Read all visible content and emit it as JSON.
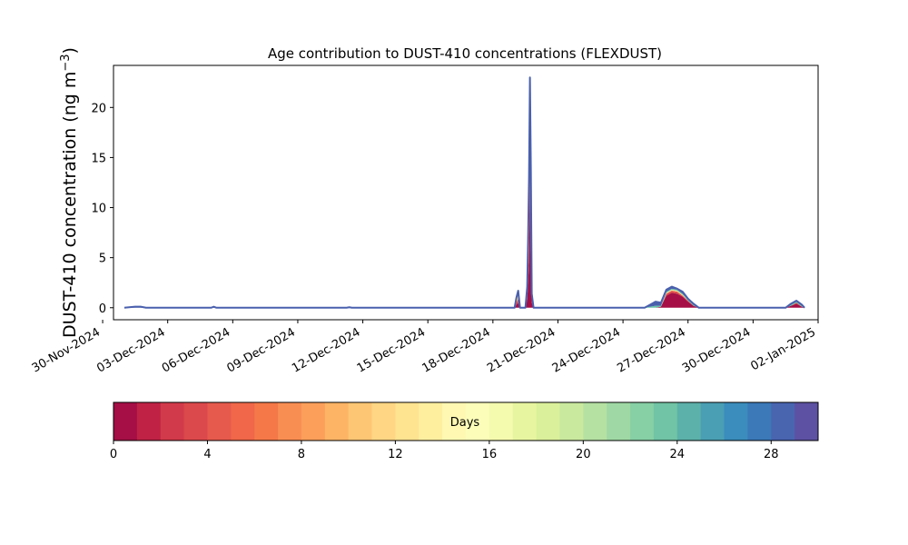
{
  "chart_data": {
    "type": "area",
    "stacked": true,
    "title": "Age contribution to DUST-410 concentrations (FLEXDUST)",
    "xlabel": "",
    "ylabel": "DUST-410 concentration (ng m⁻³)",
    "xlim": [
      "2024-11-30T12:00",
      "2025-01-02T00:00"
    ],
    "ylim": [
      -1.2,
      24.2
    ],
    "grid": false,
    "x_ticks": [
      "2024-11-30",
      "2024-12-03",
      "2024-12-06",
      "2024-12-09",
      "2024-12-12",
      "2024-12-15",
      "2024-12-18",
      "2024-12-21",
      "2024-12-24",
      "2024-12-27",
      "2024-12-30",
      "2025-01-02"
    ],
    "x_tick_labels": [
      "30-Nov-2024",
      "03-Dec-2024",
      "06-Dec-2024",
      "09-Dec-2024",
      "12-Dec-2024",
      "15-Dec-2024",
      "18-Dec-2024",
      "21-Dec-2024",
      "24-Dec-2024",
      "27-Dec-2024",
      "30-Dec-2024",
      "02-Jan-2025"
    ],
    "y_ticks": [
      0,
      5,
      10,
      15,
      20
    ],
    "y_tick_labels": [
      "0",
      "5",
      "10",
      "15",
      "20"
    ],
    "x": [
      "2024-12-01T00:00",
      "2024-12-01T12:00",
      "2024-12-01T18:00",
      "2024-12-02T00:00",
      "2024-12-05T00:00",
      "2024-12-05T03:00",
      "2024-12-05T06:00",
      "2024-12-11T06:00",
      "2024-12-11T09:00",
      "2024-12-11T12:00",
      "2024-12-19T00:00",
      "2024-12-19T02:00",
      "2024-12-19T04:00",
      "2024-12-19T06:00",
      "2024-12-19T09:00",
      "2024-12-19T12:00",
      "2024-12-19T14:00",
      "2024-12-19T15:00",
      "2024-12-19T16:00",
      "2024-12-19T17:00",
      "2024-12-19T18:00",
      "2024-12-19T19:00",
      "2024-12-19T21:00",
      "2024-12-20T00:00",
      "2024-12-25T00:00",
      "2024-12-25T06:00",
      "2024-12-25T12:00",
      "2024-12-25T18:00",
      "2024-12-26T00:00",
      "2024-12-26T06:00",
      "2024-12-26T12:00",
      "2024-12-26T18:00",
      "2024-12-27T00:00",
      "2024-12-27T06:00",
      "2024-12-27T12:00",
      "2024-12-31T00:00",
      "2024-12-31T12:00",
      "2024-12-31T18:00",
      "2025-01-01T00:00",
      "2025-01-01T06:00",
      "2025-01-01T09:00"
    ],
    "series": [
      {
        "values": [
          0,
          0,
          0,
          0,
          0,
          0,
          0,
          0,
          0,
          0,
          0,
          0.3,
          0.5,
          0,
          0,
          0,
          0.8,
          2.5,
          4.5,
          12.5,
          4,
          0.5,
          0,
          0,
          0,
          0,
          0,
          0.1,
          1.2,
          1.5,
          1.4,
          1.1,
          0.6,
          0.2,
          0,
          0,
          0,
          0.2,
          0.4,
          0.1,
          0
        ]
      },
      {
        "values": [
          0,
          0,
          0,
          0,
          0,
          0,
          0,
          0,
          0,
          0,
          0,
          0.2,
          0.4,
          0,
          0,
          0,
          0.5,
          1.5,
          3,
          5,
          3,
          0.4,
          0,
          0,
          0,
          0,
          0,
          0,
          0.2,
          0.2,
          0.2,
          0.1,
          0.1,
          0,
          0,
          0,
          0,
          0,
          0.1,
          0,
          0
        ]
      },
      {
        "values": [
          0,
          0,
          0,
          0,
          0,
          0,
          0,
          0,
          0,
          0,
          0,
          0.3,
          0.5,
          0,
          0,
          0,
          0.5,
          2,
          4,
          3.5,
          4,
          0.3,
          0,
          0,
          0,
          0,
          0,
          0,
          0.1,
          0.1,
          0.1,
          0.1,
          0,
          0,
          0,
          0,
          0,
          0,
          0,
          0,
          0
        ]
      },
      {
        "values": [
          0,
          0,
          0,
          0,
          0,
          0,
          0,
          0,
          0,
          0,
          0,
          0.1,
          0.2,
          0,
          0,
          0,
          0.2,
          0.5,
          1,
          1,
          1.5,
          0.1,
          0,
          0,
          0,
          0.1,
          0.2,
          0.1,
          0.1,
          0.1,
          0.1,
          0.1,
          0.1,
          0.1,
          0,
          0,
          0,
          0.1,
          0.1,
          0.1,
          0
        ]
      },
      {
        "values": [
          0,
          0.1,
          0.1,
          0,
          0,
          0.1,
          0,
          0,
          0.05,
          0,
          0,
          0.1,
          0.1,
          0,
          0,
          0,
          0.1,
          0.5,
          0.5,
          1,
          1.5,
          0.1,
          0,
          0,
          0,
          0.2,
          0.4,
          0.3,
          0.2,
          0.2,
          0.1,
          0.2,
          0.1,
          0.1,
          0,
          0,
          0,
          0.1,
          0.1,
          0.1,
          0
        ]
      }
    ],
    "series_colors": [
      "#a50f45",
      "#e04c4a",
      "#fee08b",
      "#66c2a5",
      "#4a60ad"
    ],
    "outline_color": "#4a60ad"
  },
  "colorbar": {
    "label": "Days",
    "range": [
      0,
      30
    ],
    "ticks": [
      0,
      4,
      8,
      12,
      16,
      20,
      24,
      28
    ],
    "tick_labels": [
      "0",
      "4",
      "8",
      "12",
      "16",
      "20",
      "24",
      "28"
    ],
    "colors": [
      "#a50f45",
      "#bf2245",
      "#d13a4a",
      "#dc494c",
      "#e65a4d",
      "#f06749",
      "#f57848",
      "#f98e53",
      "#fb9f5a",
      "#fdb465",
      "#fdc674",
      "#fed684",
      "#fee391",
      "#feef9f",
      "#fef8b2",
      "#fbfdb9",
      "#f4faae",
      "#e7f5a0",
      "#daf09a",
      "#c9e99e",
      "#b5e1a2",
      "#9fd8a4",
      "#87cfa5",
      "#71c4a5",
      "#5cb1aa",
      "#4a9fb4",
      "#3a8dbc",
      "#3b79b8",
      "#4965b0",
      "#5c51a2"
    ]
  }
}
